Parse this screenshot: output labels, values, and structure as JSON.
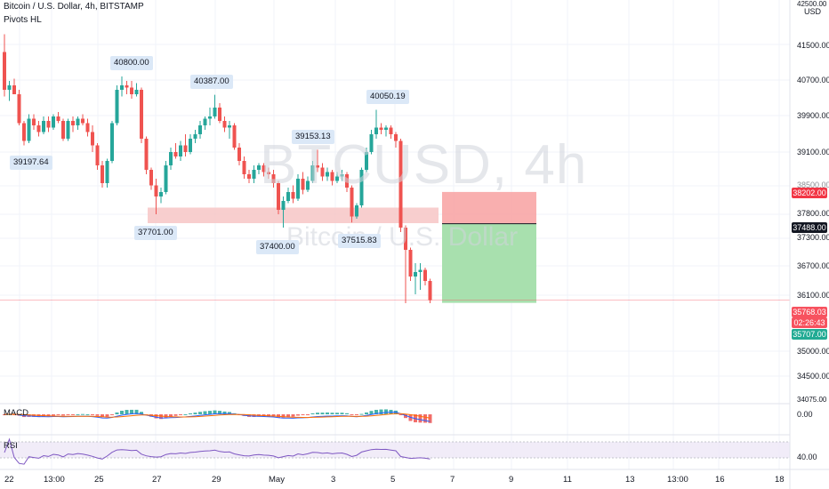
{
  "header": {
    "title": "Bitcoin / U.S. Dollar, 4h, BITSTAMP",
    "indicator": "Pivots HL"
  },
  "watermark": {
    "symbol": "BTCUSD, 4h",
    "name": "Bitcoin / U.S. Dollar"
  },
  "pivot_labels": [
    {
      "text": "40800.00"
    },
    {
      "text": "40387.00"
    },
    {
      "text": "40050.19"
    },
    {
      "text": "39153.13"
    },
    {
      "text": "39197.64"
    },
    {
      "text": "37701.00"
    },
    {
      "text": "37400.00"
    },
    {
      "text": "37515.83"
    }
  ],
  "price_axis": {
    "currency": "USD",
    "ticks": [
      "41500.00",
      "40700.00",
      "39900.00",
      "39100.00",
      "38500.00",
      "37800.00",
      "37300.00",
      "36700.00",
      "36100.00",
      "35000.00",
      "34500.00"
    ],
    "top_label": "42500.00",
    "bottom_label": "34075.00",
    "badges": [
      {
        "text": "38202.00",
        "color": "#f23645"
      },
      {
        "text": "37488.00",
        "color": "#131722"
      },
      {
        "text": "35768.03",
        "color": "#f7525f"
      },
      {
        "text": "02:26:43",
        "color": "#f7525f"
      },
      {
        "text": "35707.00",
        "color": "#22ab94"
      }
    ]
  },
  "time_axis": [
    "22",
    "13:00",
    "25",
    "27",
    "29",
    "May",
    "3",
    "5",
    "7",
    "9",
    "11",
    "13",
    "13:00",
    "16",
    "18"
  ],
  "macd": {
    "label": "MACD",
    "value": "0.00"
  },
  "rsi": {
    "label": "RSI",
    "value": "40.00"
  },
  "colors": {
    "up": "#26a69a",
    "down": "#ef5350",
    "zone": "#f7c6c6",
    "stop": "#f8a6a6",
    "target": "#a3deaa"
  },
  "chart_data": {
    "type": "candlestick",
    "symbol": "BTCUSD",
    "interval": "4h",
    "exchange": "BITSTAMP",
    "y_range": [
      34075,
      42500
    ],
    "candles": [
      {
        "o": 41350,
        "h": 41750,
        "l": 40350,
        "c": 40500
      },
      {
        "o": 40500,
        "h": 40700,
        "l": 40250,
        "c": 40600
      },
      {
        "o": 40600,
        "h": 40750,
        "l": 40450,
        "c": 40400
      },
      {
        "o": 40400,
        "h": 40500,
        "l": 39700,
        "c": 39750
      },
      {
        "o": 39750,
        "h": 39800,
        "l": 39250,
        "c": 39350
      },
      {
        "o": 39350,
        "h": 39950,
        "l": 39300,
        "c": 39850
      },
      {
        "o": 39850,
        "h": 39950,
        "l": 39600,
        "c": 39700
      },
      {
        "o": 39700,
        "h": 39800,
        "l": 39450,
        "c": 39550
      },
      {
        "o": 39550,
        "h": 39900,
        "l": 39500,
        "c": 39800
      },
      {
        "o": 39800,
        "h": 39900,
        "l": 39550,
        "c": 39650
      },
      {
        "o": 39650,
        "h": 39950,
        "l": 39600,
        "c": 39900
      },
      {
        "o": 39900,
        "h": 40000,
        "l": 39750,
        "c": 39800
      },
      {
        "o": 39800,
        "h": 39850,
        "l": 39350,
        "c": 39400
      },
      {
        "o": 39400,
        "h": 39850,
        "l": 39350,
        "c": 39800
      },
      {
        "o": 39800,
        "h": 39900,
        "l": 39550,
        "c": 39700
      },
      {
        "o": 39700,
        "h": 39900,
        "l": 39600,
        "c": 39850
      },
      {
        "o": 39850,
        "h": 39950,
        "l": 39700,
        "c": 39750
      },
      {
        "o": 39750,
        "h": 39850,
        "l": 39450,
        "c": 39550
      },
      {
        "o": 39550,
        "h": 39700,
        "l": 39100,
        "c": 39250
      },
      {
        "o": 39250,
        "h": 39300,
        "l": 38700,
        "c": 38800
      },
      {
        "o": 38800,
        "h": 38900,
        "l": 38300,
        "c": 38400
      },
      {
        "o": 38400,
        "h": 38950,
        "l": 38300,
        "c": 38900
      },
      {
        "o": 38900,
        "h": 39800,
        "l": 38850,
        "c": 39750
      },
      {
        "o": 39750,
        "h": 40600,
        "l": 39700,
        "c": 40500
      },
      {
        "o": 40500,
        "h": 40800,
        "l": 40350,
        "c": 40600
      },
      {
        "o": 40600,
        "h": 40700,
        "l": 40400,
        "c": 40550
      },
      {
        "o": 40550,
        "h": 40700,
        "l": 40300,
        "c": 40400
      },
      {
        "o": 40400,
        "h": 40650,
        "l": 40350,
        "c": 40500
      },
      {
        "o": 40500,
        "h": 40550,
        "l": 39300,
        "c": 39400
      },
      {
        "o": 39400,
        "h": 39450,
        "l": 38600,
        "c": 38700
      },
      {
        "o": 38700,
        "h": 38750,
        "l": 38250,
        "c": 38350
      },
      {
        "o": 38350,
        "h": 38500,
        "l": 37701,
        "c": 38100
      },
      {
        "o": 38100,
        "h": 38300,
        "l": 37950,
        "c": 38200
      },
      {
        "o": 38200,
        "h": 38900,
        "l": 38150,
        "c": 38800
      },
      {
        "o": 38800,
        "h": 39200,
        "l": 38700,
        "c": 39100
      },
      {
        "o": 39100,
        "h": 39300,
        "l": 38950,
        "c": 39000
      },
      {
        "o": 39000,
        "h": 39350,
        "l": 38900,
        "c": 39250
      },
      {
        "o": 39250,
        "h": 39500,
        "l": 39000,
        "c": 39100
      },
      {
        "o": 39100,
        "h": 39500,
        "l": 39050,
        "c": 39400
      },
      {
        "o": 39400,
        "h": 39600,
        "l": 39300,
        "c": 39500
      },
      {
        "o": 39500,
        "h": 39800,
        "l": 39400,
        "c": 39700
      },
      {
        "o": 39700,
        "h": 39900,
        "l": 39600,
        "c": 39850
      },
      {
        "o": 39850,
        "h": 40100,
        "l": 39700,
        "c": 39900
      },
      {
        "o": 39900,
        "h": 40387,
        "l": 39850,
        "c": 40100
      },
      {
        "o": 40100,
        "h": 40200,
        "l": 39750,
        "c": 39800
      },
      {
        "o": 39800,
        "h": 39900,
        "l": 39550,
        "c": 39650
      },
      {
        "o": 39650,
        "h": 39800,
        "l": 39400,
        "c": 39700
      },
      {
        "o": 39700,
        "h": 39750,
        "l": 39150,
        "c": 39200
      },
      {
        "o": 39200,
        "h": 39300,
        "l": 38800,
        "c": 38900
      },
      {
        "o": 38900,
        "h": 39000,
        "l": 38500,
        "c": 38600
      },
      {
        "o": 38600,
        "h": 38700,
        "l": 38400,
        "c": 38500
      },
      {
        "o": 38500,
        "h": 38800,
        "l": 38400,
        "c": 38700
      },
      {
        "o": 38700,
        "h": 38850,
        "l": 38600,
        "c": 38800
      },
      {
        "o": 38800,
        "h": 38850,
        "l": 38550,
        "c": 38650
      },
      {
        "o": 38650,
        "h": 38750,
        "l": 38500,
        "c": 38600
      },
      {
        "o": 38600,
        "h": 38700,
        "l": 38300,
        "c": 38400
      },
      {
        "o": 38400,
        "h": 38450,
        "l": 37700,
        "c": 37800
      },
      {
        "o": 37800,
        "h": 38100,
        "l": 37400,
        "c": 38000
      },
      {
        "o": 38000,
        "h": 38300,
        "l": 37950,
        "c": 38200
      },
      {
        "o": 38200,
        "h": 38350,
        "l": 37950,
        "c": 38050
      },
      {
        "o": 38050,
        "h": 38600,
        "l": 38000,
        "c": 38500
      },
      {
        "o": 38500,
        "h": 38650,
        "l": 38150,
        "c": 38250
      },
      {
        "o": 38250,
        "h": 38550,
        "l": 38200,
        "c": 38450
      },
      {
        "o": 38450,
        "h": 38900,
        "l": 38400,
        "c": 38800
      },
      {
        "o": 38800,
        "h": 39153,
        "l": 38650,
        "c": 38750
      },
      {
        "o": 38750,
        "h": 38850,
        "l": 38450,
        "c": 38550
      },
      {
        "o": 38550,
        "h": 38750,
        "l": 38450,
        "c": 38650
      },
      {
        "o": 38650,
        "h": 38700,
        "l": 38350,
        "c": 38450
      },
      {
        "o": 38450,
        "h": 38650,
        "l": 38400,
        "c": 38550
      },
      {
        "o": 38550,
        "h": 38700,
        "l": 38450,
        "c": 38600
      },
      {
        "o": 38600,
        "h": 38650,
        "l": 38200,
        "c": 38300
      },
      {
        "o": 38300,
        "h": 38350,
        "l": 37515,
        "c": 37650
      },
      {
        "o": 37650,
        "h": 37950,
        "l": 37600,
        "c": 37900
      },
      {
        "o": 37900,
        "h": 38750,
        "l": 37850,
        "c": 38700
      },
      {
        "o": 38700,
        "h": 39200,
        "l": 38650,
        "c": 39100
      },
      {
        "o": 39100,
        "h": 39600,
        "l": 39050,
        "c": 39500
      },
      {
        "o": 39500,
        "h": 40050,
        "l": 39400,
        "c": 39650
      },
      {
        "o": 39650,
        "h": 39750,
        "l": 39500,
        "c": 39600
      },
      {
        "o": 39600,
        "h": 39700,
        "l": 39450,
        "c": 39650
      },
      {
        "o": 39650,
        "h": 39700,
        "l": 39400,
        "c": 39500
      },
      {
        "o": 39500,
        "h": 39550,
        "l": 39200,
        "c": 39350
      },
      {
        "o": 39350,
        "h": 39400,
        "l": 37300,
        "c": 37400
      },
      {
        "o": 37400,
        "h": 37450,
        "l": 35700,
        "c": 36900
      },
      {
        "o": 36900,
        "h": 36950,
        "l": 36200,
        "c": 36300
      },
      {
        "o": 36300,
        "h": 36600,
        "l": 35900,
        "c": 36400
      },
      {
        "o": 36400,
        "h": 36600,
        "l": 36000,
        "c": 36450
      },
      {
        "o": 36450,
        "h": 36500,
        "l": 36100,
        "c": 36200
      },
      {
        "o": 36200,
        "h": 36250,
        "l": 35700,
        "c": 35768
      }
    ],
    "support_zone": {
      "low": 37500,
      "high": 37850
    },
    "position": {
      "entry": 37488,
      "stop": 38202,
      "target": 35707
    },
    "last_price": 35768.03
  }
}
